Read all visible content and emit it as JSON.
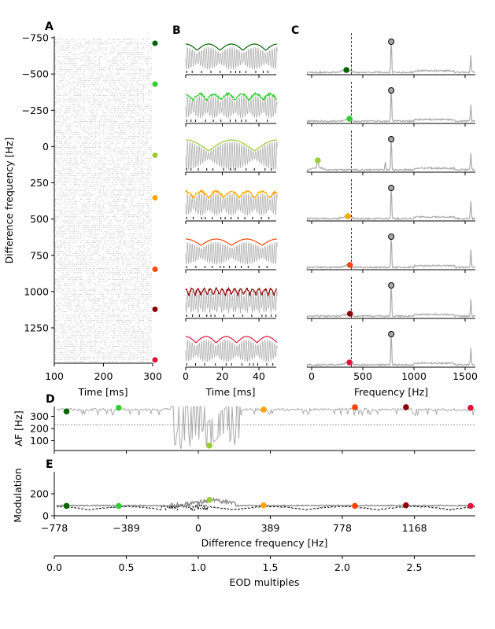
{
  "panel_labels": [
    "A",
    "B",
    "C",
    "D",
    "E"
  ],
  "colors": [
    "#006400",
    "#32cd32",
    "#9acd32",
    "#ffa500",
    "#ff4500",
    "#8b0000",
    "#dc143c"
  ],
  "panelA": {
    "ylabel": "Difference frequency [Hz]",
    "xlabel": "Time [ms]",
    "xticks": [
      "100",
      "200",
      "300"
    ],
    "yticks": [
      "−750",
      "−500",
      "−250",
      "0",
      "250",
      "500",
      "750",
      "1000",
      "1250"
    ],
    "xlim": [
      100,
      300
    ],
    "ylim": [
      -750,
      1490
    ]
  },
  "panelB": {
    "xlabel": "Time [ms]",
    "xticks": [
      "0",
      "20",
      "40"
    ],
    "xlim": [
      0,
      50
    ]
  },
  "panelC": {
    "xlabel": "Frequency [Hz]",
    "xticks": [
      "0",
      "500",
      "1000",
      "1500"
    ],
    "xlim": [
      -46,
      1600
    ],
    "dashed_line_hz": 389,
    "peak_hz": 778
  },
  "panelD": {
    "ylabel": "AF [Hz]",
    "yticks": [
      "100",
      "200",
      "300"
    ],
    "ylim": [
      0,
      400
    ],
    "dotted_line_hz": 230
  },
  "panelE": {
    "ylabel": "Modulation",
    "yticks": [
      "0",
      "200"
    ],
    "ylim": [
      0,
      400
    ],
    "xlabel": "Difference frequency [Hz]",
    "xticks": [
      "−778",
      "−389",
      "0",
      "389",
      "778",
      "1168"
    ],
    "eod_axis_label": "EOD multiples",
    "eod_ticks": [
      "0.0",
      "0.5",
      "1.0",
      "1.5",
      "2.0",
      "2.5"
    ]
  },
  "chart_data": {
    "type": "line",
    "xlim_df": [
      -778,
      1497
    ],
    "eod_hz": 778,
    "examples": [
      {
        "df": -712,
        "af": 340,
        "modulation": 90
      },
      {
        "df": -430,
        "af": 370,
        "modulation": 90
      },
      {
        "df": 60,
        "af": 60,
        "modulation": 145
      },
      {
        "df": 353,
        "af": 355,
        "modulation": 95
      },
      {
        "df": 846,
        "af": 375,
        "modulation": 90
      },
      {
        "df": 1122,
        "af": 375,
        "modulation": 95
      },
      {
        "df": 1471,
        "af": 370,
        "modulation": 90
      }
    ]
  }
}
